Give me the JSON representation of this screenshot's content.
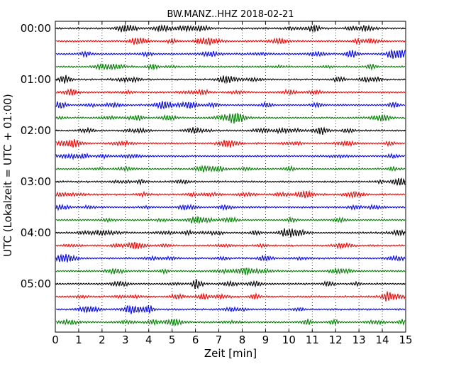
{
  "chart_data": {
    "type": "line",
    "title": "BW.MANZ..HHZ 2018-02-21",
    "xlabel": "Zeit  [min]",
    "ylabel": "UTC (Lokalzeit = UTC + 01:00)",
    "xlim": [
      0,
      15
    ],
    "x_ticks": [
      "0",
      "1",
      "2",
      "3",
      "4",
      "5",
      "6",
      "7",
      "8",
      "9",
      "10",
      "11",
      "12",
      "13",
      "14",
      "15"
    ],
    "y_tick_labels": [
      "00:00",
      "01:00",
      "02:00",
      "03:00",
      "04:00",
      "05:00"
    ],
    "rows_per_hour": 4,
    "row_count": 24,
    "row_colors": [
      "#000000",
      "#ff0000",
      "#0000ff",
      "#008000"
    ],
    "grid": "vertical dotted lines at each minute"
  }
}
